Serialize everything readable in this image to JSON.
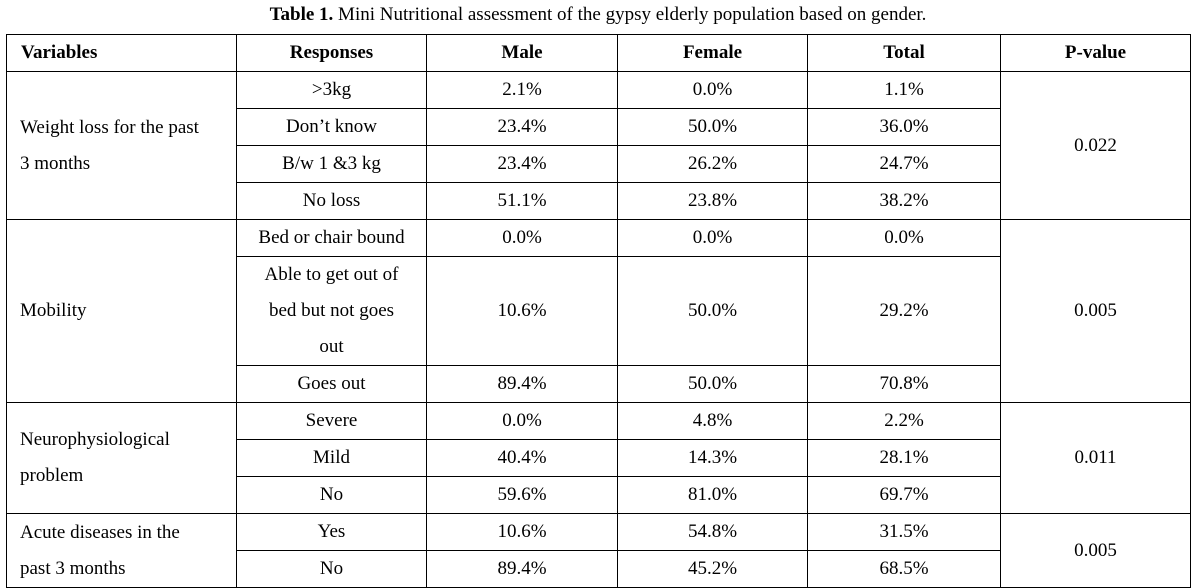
{
  "caption": {
    "label": "Table 1.",
    "text": " Mini Nutritional assessment of the gypsy elderly population based on gender."
  },
  "headers": {
    "variables": "Variables",
    "responses": "Responses",
    "male": "Male",
    "female": "Female",
    "total": "Total",
    "p_value": "P-value"
  },
  "groups": [
    {
      "variable": [
        "Weight loss for the past",
        "3 months"
      ],
      "p_value": "0.022",
      "rows": [
        {
          "response": ">3kg",
          "male": "2.1%",
          "female": "0.0%",
          "total": "1.1%"
        },
        {
          "response": "Don’t know",
          "male": "23.4%",
          "female": "50.0%",
          "total": "36.0%"
        },
        {
          "response": "B/w 1 &3 kg",
          "male": "23.4%",
          "female": "26.2%",
          "total": "24.7%"
        },
        {
          "response": "No loss",
          "male": "51.1%",
          "female": "23.8%",
          "total": "38.2%"
        }
      ]
    },
    {
      "variable": [
        "Mobility"
      ],
      "p_value": "0.005",
      "rows": [
        {
          "response": "Bed or chair bound",
          "male": "0.0%",
          "female": "0.0%",
          "total": "0.0%"
        },
        {
          "response": "Able to get out of bed but not goes out",
          "male": "10.6%",
          "female": "50.0%",
          "total": "29.2%"
        },
        {
          "response": "Goes out",
          "male": "89.4%",
          "female": "50.0%",
          "total": "70.8%"
        }
      ]
    },
    {
      "variable": [
        "Neurophysiological",
        "problem"
      ],
      "p_value": "0.011",
      "rows": [
        {
          "response": "Severe",
          "male": "0.0%",
          "female": "4.8%",
          "total": "2.2%"
        },
        {
          "response": "Mild",
          "male": "40.4%",
          "female": "14.3%",
          "total": "28.1%"
        },
        {
          "response": "No",
          "male": "59.6%",
          "female": "81.0%",
          "total": "69.7%"
        }
      ]
    },
    {
      "variable": [
        "Acute diseases in the",
        "past 3 months"
      ],
      "p_value": "0.005",
      "rows": [
        {
          "response": "Yes",
          "male": "10.6%",
          "female": "54.8%",
          "total": "31.5%"
        },
        {
          "response": "No",
          "male": "89.4%",
          "female": "45.2%",
          "total": "68.5%"
        }
      ]
    }
  ]
}
